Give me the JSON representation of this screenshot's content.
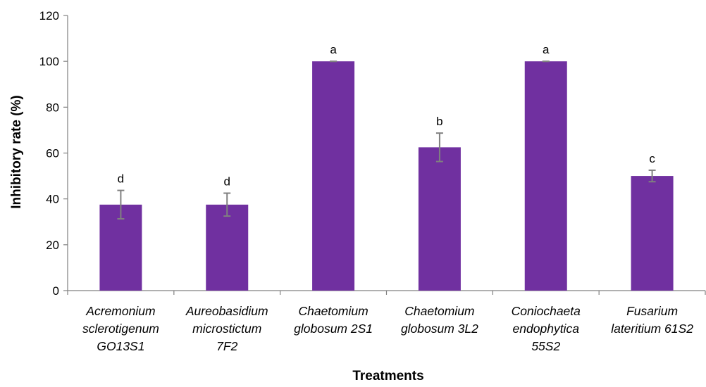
{
  "chart_data": {
    "type": "bar",
    "title": "",
    "xlabel": "Treatments",
    "ylabel": "Inhibitory rate (%)",
    "ylim": [
      0,
      120
    ],
    "yticks": [
      0,
      20,
      40,
      60,
      80,
      100,
      120
    ],
    "grid": false,
    "legend": "none",
    "categories": [
      [
        "Acremonium",
        "sclerotigenum",
        "GO13S1"
      ],
      [
        "Aureobasidium",
        "microstictum",
        "7F2"
      ],
      [
        "Chaetomium",
        "globosum 2S1"
      ],
      [
        "Chaetomium",
        "globosum 3L2"
      ],
      [
        "Coniochaeta",
        "endophytica",
        "55S2"
      ],
      [
        "Fusarium",
        "lateritium 61S2"
      ]
    ],
    "values": [
      37.5,
      37.5,
      100,
      62.5,
      100,
      50
    ],
    "error": [
      6.2,
      5.0,
      0,
      6.2,
      0,
      2.5
    ],
    "significance": [
      "d",
      "d",
      "a",
      "b",
      "a",
      "c"
    ],
    "colors": {
      "bar": "#7030A0",
      "errorbar": "#808080",
      "axis": "#808080"
    }
  }
}
